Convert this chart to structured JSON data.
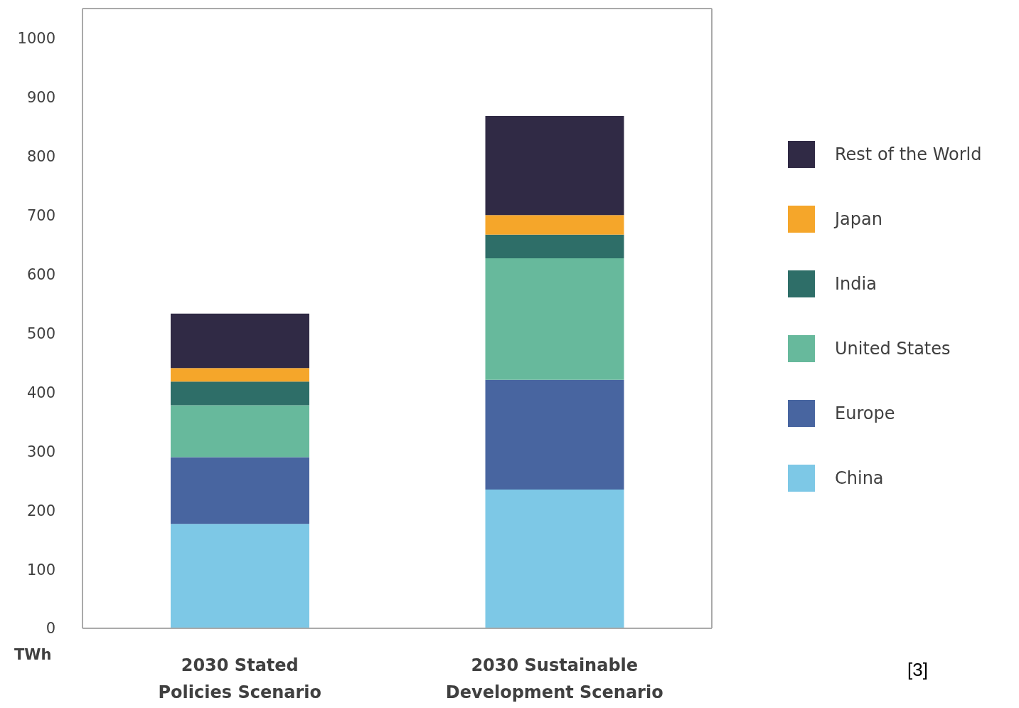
{
  "chart_data": {
    "type": "bar",
    "stacked": true,
    "ylabel": "TWh",
    "categories": [
      "2030 Stated Policies Scenario",
      "2030 Sustainable Development Scenario"
    ],
    "series": [
      {
        "name": "China",
        "color": "#7dc8e6",
        "values": [
          177,
          235
        ]
      },
      {
        "name": "Europe",
        "color": "#4865a0",
        "values": [
          113,
          186
        ]
      },
      {
        "name": "United States",
        "color": "#67b99c",
        "values": [
          88,
          206
        ]
      },
      {
        "name": "India",
        "color": "#2e6e68",
        "values": [
          40,
          40
        ]
      },
      {
        "name": "Japan",
        "color": "#f5a62a",
        "values": [
          23,
          33
        ]
      },
      {
        "name": "Rest of the World",
        "color": "#302a45",
        "values": [
          92,
          168
        ]
      }
    ],
    "ylim": [
      0,
      1050
    ],
    "yticks": [
      0,
      100,
      200,
      300,
      400,
      500,
      600,
      700,
      800,
      900,
      1000
    ],
    "grid": false,
    "legend": "right",
    "annotations": [
      "[3]"
    ]
  }
}
